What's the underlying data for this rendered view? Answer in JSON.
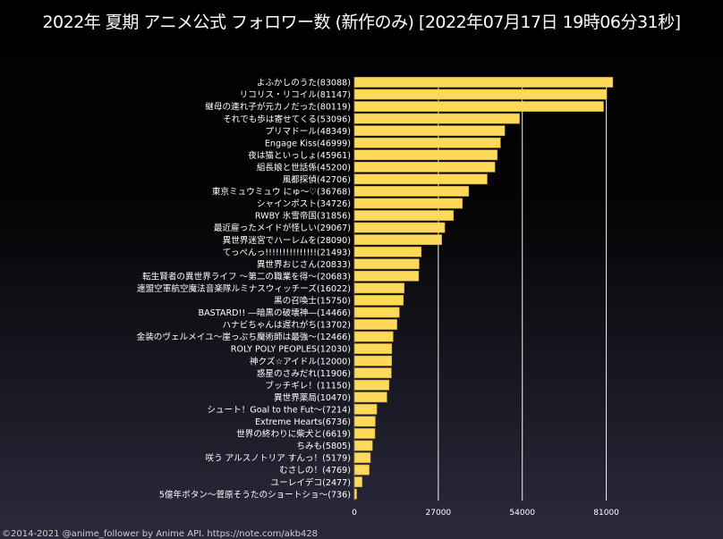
{
  "chart_data": {
    "type": "bar",
    "orientation": "horizontal",
    "title": "2022年 夏期 アニメ公式 フォロワー数 (新作のみ) [2022年07月17日 19時06分31秒]",
    "xlabel": "",
    "ylabel": "",
    "xlim": [
      0,
      84000
    ],
    "xticks": [
      0,
      27000,
      54000,
      81000
    ],
    "grid": "vertical",
    "bar_color": "#FFD95A",
    "categories": [
      "よふかしのうた(83088)",
      "リコリス・リコイル(81147)",
      "継母の連れ子が元カノだった(80119)",
      "それでも歩は寄せてくる(53096)",
      "プリマドール(48349)",
      "Engage Kiss(46999)",
      "夜は猫といっしょ(45961)",
      "組長娘と世話係(45200)",
      "風都探偵(42706)",
      "東京ミュウミュウ にゅ～♡(36768)",
      "シャインポスト(34726)",
      "RWBY 氷雪帝国(31856)",
      "最近雇ったメイドが怪しい(29067)",
      "異世界迷宮でハーレムを(28090)",
      "てっぺんっ!!!!!!!!!!!!!!!(21493)",
      "異世界おじさん(20833)",
      "転生賢者の異世界ライフ ～第二の職業を得～(20683)",
      "連盟空軍航空魔法音楽隊ルミナスウィッチーズ(16022)",
      "黒の召喚士(15750)",
      "BASTARD!! ―暗黒の破壊神―(14466)",
      "ハナビちゃんは遅れがち(13702)",
      "金装のヴェルメイユ～崖っぷち魔術師は最強～(12466)",
      "ROLY POLY PEOPLES(12030)",
      "神クズ☆アイドル(12000)",
      "惑星のさみだれ(11906)",
      "ブッチギレ！(11150)",
      "異世界薬局(10470)",
      "シュート！Goal to the Fut～(7214)",
      "Extreme Hearts(6736)",
      "世界の終わりに柴犬と(6619)",
      "ちみも(5805)",
      "咲う アルスノトリア すんっ！(5179)",
      "むさしの！(4769)",
      "ユーレイデコ(2477)",
      "5億年ボタン～菅原そうたのショートショ～(736)"
    ],
    "values": [
      83088,
      81147,
      80119,
      53096,
      48349,
      46999,
      45961,
      45200,
      42706,
      36768,
      34726,
      31856,
      29067,
      28090,
      21493,
      20833,
      20683,
      16022,
      15750,
      14466,
      13702,
      12466,
      12030,
      12000,
      11906,
      11150,
      10470,
      7214,
      6736,
      6619,
      5805,
      5179,
      4769,
      2477,
      736
    ]
  },
  "footer": "©2014-2021 @anime_follower by Anime API. https://note.com/akb428"
}
